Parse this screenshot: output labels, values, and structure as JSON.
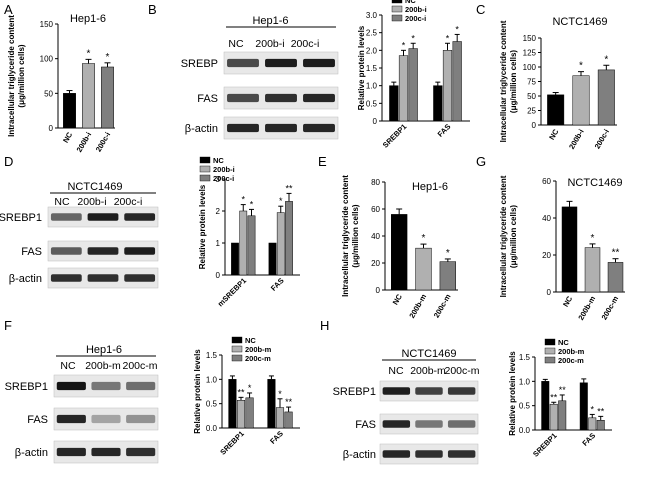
{
  "figure": {
    "panels": [
      {
        "letter": "A"
      },
      {
        "letter": "B"
      },
      {
        "letter": "C"
      },
      {
        "letter": "D"
      },
      {
        "letter": "E"
      },
      {
        "letter": "G"
      },
      {
        "letter": "F"
      },
      {
        "letter": "H"
      }
    ]
  },
  "colors": {
    "black": "#000000",
    "light_gray": "#b0b0b0",
    "mid_gray": "#7f7f7f",
    "blot_bg": "#ececec",
    "band": "#1f1f1f"
  },
  "western_blots": {
    "B": {
      "title": "Hep1-6",
      "lanes": [
        "NC",
        "200b-i",
        "200c-i"
      ],
      "rows": [
        "SREBP",
        "FAS",
        "β-actin"
      ]
    },
    "D": {
      "title": "NCTC1469",
      "lanes": [
        "NC",
        "200b-i",
        "200c-i"
      ],
      "rows": [
        "SREBP1",
        "FAS",
        "β-actin"
      ]
    },
    "F": {
      "title": "Hep1-6",
      "lanes": [
        "NC",
        "200b-m",
        "200c-m"
      ],
      "rows": [
        "SREBP1",
        "FAS",
        "β-actin"
      ]
    },
    "H": {
      "title": "NCTC1469",
      "lanes": [
        "NC",
        "200b-m",
        "200c-m"
      ],
      "rows": [
        "SREBP1",
        "FAS",
        "β-actin"
      ]
    }
  },
  "chart_data": [
    {
      "panel": "A",
      "type": "bar",
      "title": "Hep1-6",
      "ylabel": "Intracellular triglyceride content (μg/million cells)",
      "categories": [
        "NC",
        "200b-i",
        "200c-i"
      ],
      "values": [
        50,
        93,
        88
      ],
      "errors": [
        4,
        6,
        6
      ],
      "significance": [
        "",
        "*",
        "*"
      ],
      "ylim": [
        0,
        150
      ],
      "yticks": [
        0,
        50,
        100,
        150
      ],
      "colors": [
        "#000000",
        "#b0b0b0",
        "#7f7f7f"
      ]
    },
    {
      "panel": "B",
      "type": "bar",
      "ylabel": "Relative protein levels",
      "categories": [
        "SREBP1",
        "FAS"
      ],
      "series": [
        {
          "name": "NC",
          "color": "#000000",
          "values": [
            1.0,
            1.0
          ],
          "errors": [
            0.1,
            0.1
          ],
          "significance": [
            "",
            ""
          ]
        },
        {
          "name": "200b-i",
          "color": "#b0b0b0",
          "values": [
            1.85,
            2.0
          ],
          "errors": [
            0.15,
            0.2
          ],
          "significance": [
            "*",
            "*"
          ]
        },
        {
          "name": "200c-i",
          "color": "#7f7f7f",
          "values": [
            2.05,
            2.25
          ],
          "errors": [
            0.15,
            0.2
          ],
          "significance": [
            "*",
            "*"
          ]
        }
      ],
      "ylim": [
        0,
        3.0
      ],
      "yticks": [
        0,
        0.5,
        1.0,
        1.5,
        2.0,
        2.5,
        3.0
      ],
      "ytick_labels": [
        "0",
        "0.5",
        "1.0",
        "1.5",
        "2.0",
        "2.5",
        "3.0"
      ],
      "legend": "top"
    },
    {
      "panel": "C",
      "type": "bar",
      "title": "NCTC1469",
      "ylabel": "Intracellular triglyceride content (μg/million cells)",
      "categories": [
        "NC",
        "200b-i",
        "200c-i"
      ],
      "values": [
        52,
        85,
        95
      ],
      "errors": [
        4,
        7,
        8
      ],
      "significance": [
        "",
        "*",
        "*"
      ],
      "ylim": [
        0,
        150
      ],
      "yticks": [
        0,
        25,
        50,
        75,
        100,
        125,
        150
      ],
      "colors": [
        "#000000",
        "#b0b0b0",
        "#7f7f7f"
      ]
    },
    {
      "panel": "D",
      "type": "bar",
      "ylabel": "Relative protein levels",
      "categories": [
        "mSREBP1",
        "FAS"
      ],
      "series": [
        {
          "name": "NC",
          "color": "#000000",
          "values": [
            1.0,
            1.0
          ],
          "errors": [
            0,
            0
          ],
          "significance": [
            "",
            ""
          ]
        },
        {
          "name": "200b-i",
          "color": "#b0b0b0",
          "values": [
            2.0,
            1.95
          ],
          "errors": [
            0.2,
            0.2
          ],
          "significance": [
            "*",
            "*"
          ]
        },
        {
          "name": "200c-i",
          "color": "#7f7f7f",
          "values": [
            1.85,
            2.3
          ],
          "errors": [
            0.2,
            0.25
          ],
          "significance": [
            "*",
            "**"
          ]
        }
      ],
      "ylim": [
        0,
        3
      ],
      "yticks": [
        0,
        1,
        2,
        3
      ],
      "ytick_labels": [
        "0",
        "1",
        "2",
        "3"
      ],
      "legend": "top-left"
    },
    {
      "panel": "E",
      "type": "bar",
      "title": "Hep1-6",
      "ylabel": "Intracellular triglyceride content (μg/million cells)",
      "categories": [
        "NC",
        "200b-m",
        "200c-m"
      ],
      "values": [
        56,
        31,
        21
      ],
      "errors": [
        4,
        3,
        2
      ],
      "significance": [
        "",
        "*",
        "*"
      ],
      "ylim": [
        0,
        80
      ],
      "yticks": [
        0,
        20,
        40,
        60,
        80
      ],
      "colors": [
        "#000000",
        "#b0b0b0",
        "#7f7f7f"
      ]
    },
    {
      "panel": "G",
      "type": "bar",
      "title": "NCTC1469",
      "ylabel": "Intracellular triglyceride content (μg/million cells)",
      "categories": [
        "NC",
        "200b-m",
        "200c-m"
      ],
      "values": [
        46,
        24,
        16
      ],
      "errors": [
        3,
        2,
        2
      ],
      "significance": [
        "",
        "*",
        "**"
      ],
      "ylim": [
        0,
        60
      ],
      "yticks": [
        0,
        20,
        40,
        60
      ],
      "colors": [
        "#000000",
        "#b0b0b0",
        "#7f7f7f"
      ]
    },
    {
      "panel": "F",
      "type": "bar",
      "ylabel": "Relative protein levels",
      "categories": [
        "SREBP1",
        "FAS"
      ],
      "series": [
        {
          "name": "NC",
          "color": "#000000",
          "values": [
            1.0,
            1.0
          ],
          "errors": [
            0.07,
            0.07
          ],
          "significance": [
            "",
            ""
          ]
        },
        {
          "name": "200b-m",
          "color": "#b0b0b0",
          "values": [
            0.57,
            0.42
          ],
          "errors": [
            0.06,
            0.18
          ],
          "significance": [
            "**",
            "*"
          ]
        },
        {
          "name": "200c-m",
          "color": "#7f7f7f",
          "values": [
            0.62,
            0.33
          ],
          "errors": [
            0.1,
            0.1
          ],
          "significance": [
            "*",
            "**"
          ]
        }
      ],
      "ylim": [
        0,
        1.5
      ],
      "yticks": [
        0,
        0.5,
        1.0,
        1.5
      ],
      "ytick_labels": [
        "0.0",
        "0.5",
        "1.0",
        "1.5"
      ],
      "legend": "top"
    },
    {
      "panel": "H",
      "type": "bar",
      "ylabel": "Relative protein levels",
      "categories": [
        "SREBP1",
        "FAS"
      ],
      "series": [
        {
          "name": "NC",
          "color": "#000000",
          "values": [
            1.0,
            0.97
          ],
          "errors": [
            0.04,
            0.08
          ],
          "significance": [
            "",
            ""
          ]
        },
        {
          "name": "200b-m",
          "color": "#b0b0b0",
          "values": [
            0.53,
            0.25
          ],
          "errors": [
            0.04,
            0.07
          ],
          "significance": [
            "**",
            "*"
          ]
        },
        {
          "name": "200c-m",
          "color": "#7f7f7f",
          "values": [
            0.6,
            0.2
          ],
          "errors": [
            0.12,
            0.08
          ],
          "significance": [
            "**",
            "**"
          ]
        }
      ],
      "ylim": [
        0,
        1.5
      ],
      "yticks": [
        0,
        0.5,
        1.0,
        1.5
      ],
      "ytick_labels": [
        "0.0",
        "0.5",
        "1.0",
        "1.5"
      ],
      "legend": "top"
    }
  ]
}
